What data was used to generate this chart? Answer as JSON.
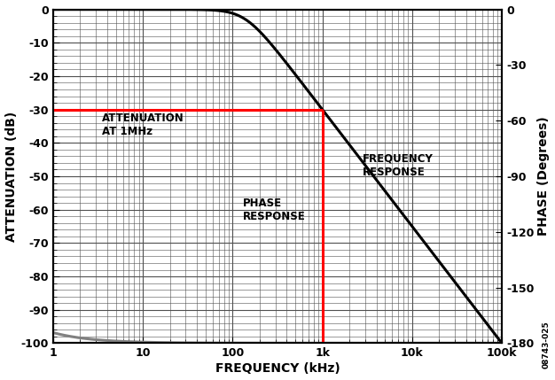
{
  "title": "",
  "xlabel": "FREQUENCY (kHz)",
  "ylabel_left": "ATTENUATION (dB)",
  "ylabel_right": "PHASE (Degrees)",
  "freq_min": 1,
  "freq_max": 100000,
  "atten_min": -100,
  "atten_max": 0,
  "phase_min": -180,
  "phase_max": 0,
  "atten_yticks": [
    0,
    -10,
    -20,
    -30,
    -40,
    -50,
    -60,
    -70,
    -80,
    -90,
    -100
  ],
  "phase_yticks": [
    0,
    -30,
    -60,
    -90,
    -120,
    -150,
    -180
  ],
  "xtick_labels": [
    "1",
    "10",
    "100",
    "1k",
    "10k",
    "100k"
  ],
  "xtick_values": [
    1,
    10,
    100,
    1000,
    10000,
    100000
  ],
  "freq_response_color": "#000000",
  "phase_response_color": "#808080",
  "red_line_color": "#ff0000",
  "red_line_freq": 1000,
  "red_line_atten": -30,
  "annotation_attn_text": "ATTENUATION\nAT 1MHz",
  "annotation_freq_text": "FREQUENCY\nRESPONSE",
  "annotation_phase_text": "PHASE\nRESPONSE",
  "watermark": "08743-025",
  "background_color": "#ffffff",
  "grid_color": "#505050",
  "label_fontsize": 10,
  "tick_fontsize": 9,
  "annotation_fontsize": 8.5
}
